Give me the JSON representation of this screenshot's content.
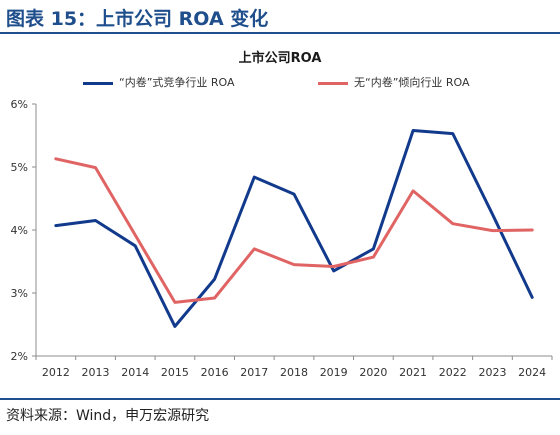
{
  "figure": {
    "title": "图表 15：上市公司 ROA 变化",
    "source": "资料来源：Wind，申万宏源研究"
  },
  "colors": {
    "accent": "#1f4e8c",
    "series_competitive": "#123a8c",
    "series_no_involution": "#e06464"
  },
  "chart_data": {
    "type": "line",
    "title": "上市公司ROA",
    "xlabel": "",
    "ylabel": "",
    "x": [
      "2012",
      "2013",
      "2014",
      "2015",
      "2016",
      "2017",
      "2018",
      "2019",
      "2020",
      "2021",
      "2022",
      "2023",
      "2024"
    ],
    "ylim": [
      2,
      6
    ],
    "yticks": [
      "2%",
      "3%",
      "4%",
      "5%",
      "6%"
    ],
    "grid": false,
    "legend_position": "top",
    "series": [
      {
        "name": "“内卷”式竞争行业 ROA",
        "values": [
          4.07,
          4.15,
          3.75,
          2.47,
          3.22,
          4.84,
          4.57,
          3.35,
          3.7,
          5.58,
          5.53,
          4.25,
          2.93
        ]
      },
      {
        "name": "无“内卷”倾向行业 ROA",
        "values": [
          5.13,
          4.99,
          3.92,
          2.85,
          2.92,
          3.7,
          3.45,
          3.42,
          3.57,
          4.62,
          4.1,
          3.99,
          4.0
        ]
      }
    ]
  }
}
